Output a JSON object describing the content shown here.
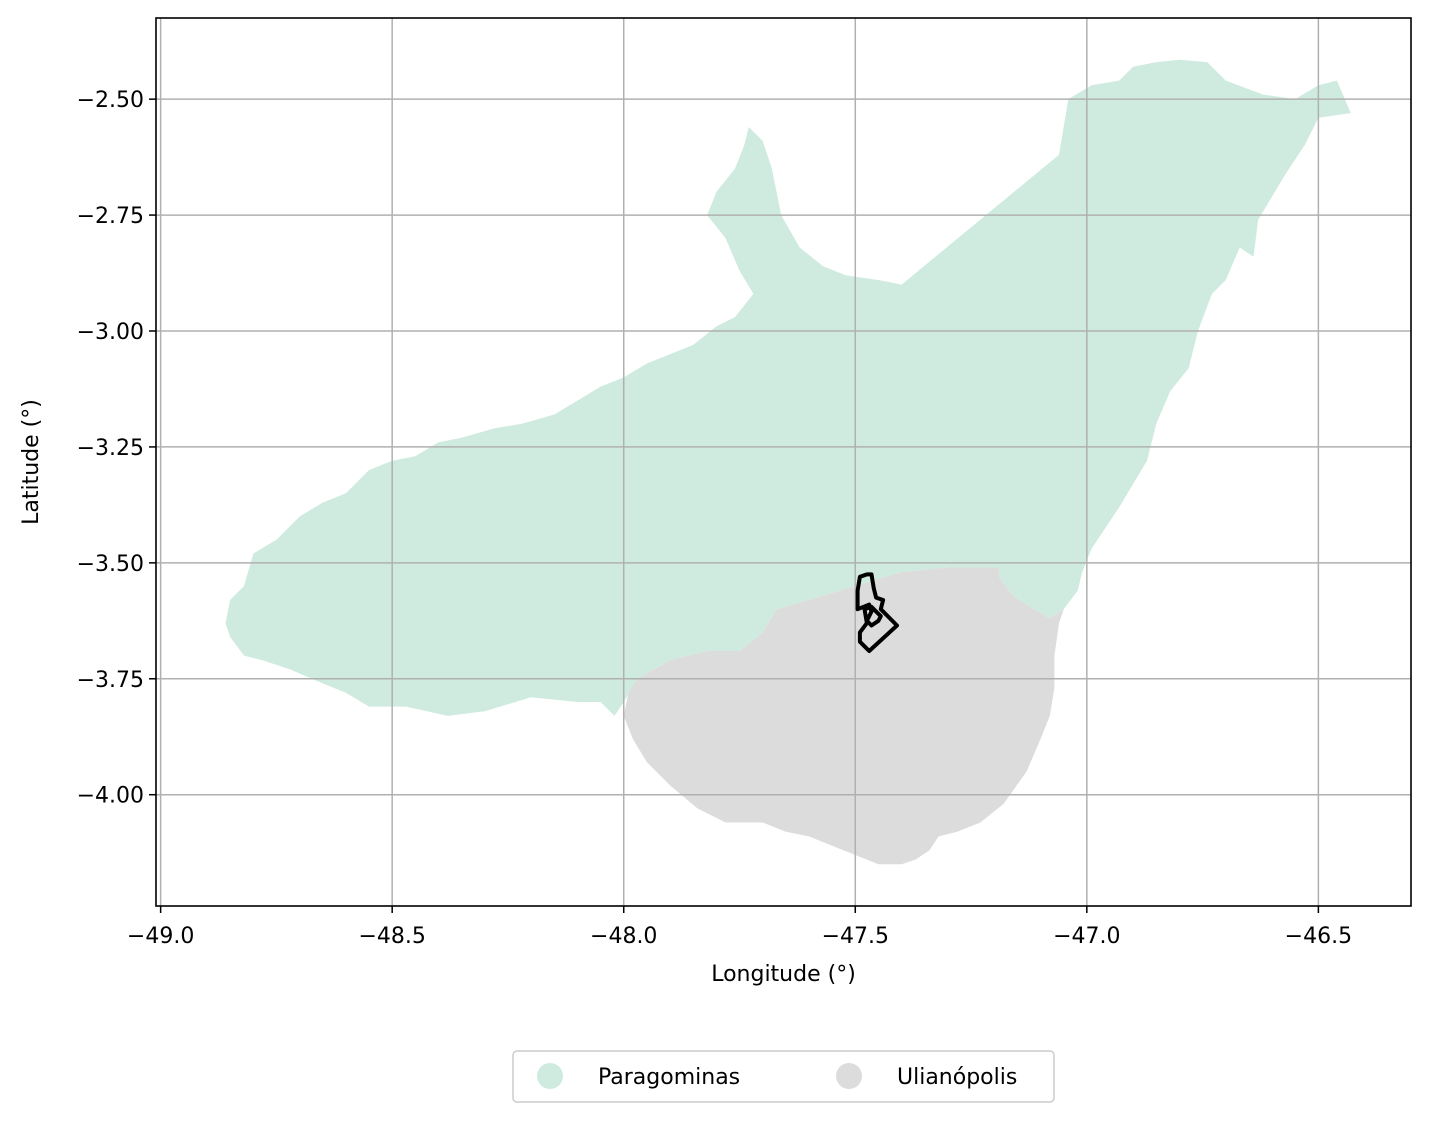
{
  "map": {
    "xlabel": "Longitude (°)",
    "ylabel": "Latitude (°)",
    "xlim": [
      -49.01,
      -46.3
    ],
    "ylim": [
      -4.24,
      -2.325
    ],
    "xticks": [
      -49.0,
      -48.5,
      -48.0,
      -47.5,
      -47.0,
      -46.5
    ],
    "yticks": [
      -2.5,
      -2.75,
      -3.0,
      -3.25,
      -3.5,
      -3.75,
      -4.0
    ],
    "xtick_labels": [
      "−49.0",
      "−48.5",
      "−48.0",
      "−47.5",
      "−47.0",
      "−46.5"
    ],
    "ytick_labels": [
      "−2.50",
      "−2.75",
      "−3.00",
      "−3.25",
      "−3.50",
      "−3.75",
      "−4.00"
    ],
    "grid": true,
    "legend_position": "bottom-center",
    "regions": [
      {
        "name": "Paragominas",
        "color": "#cfebdf",
        "outline": [
          [
            -48.86,
            -3.63
          ],
          [
            -48.85,
            -3.58
          ],
          [
            -48.82,
            -3.55
          ],
          [
            -48.8,
            -3.48
          ],
          [
            -48.75,
            -3.45
          ],
          [
            -48.7,
            -3.4
          ],
          [
            -48.65,
            -3.37
          ],
          [
            -48.6,
            -3.35
          ],
          [
            -48.55,
            -3.3
          ],
          [
            -48.5,
            -3.28
          ],
          [
            -48.45,
            -3.27
          ],
          [
            -48.4,
            -3.24
          ],
          [
            -48.35,
            -3.23
          ],
          [
            -48.28,
            -3.21
          ],
          [
            -48.22,
            -3.2
          ],
          [
            -48.15,
            -3.18
          ],
          [
            -48.1,
            -3.15
          ],
          [
            -48.05,
            -3.12
          ],
          [
            -48.0,
            -3.1
          ],
          [
            -47.95,
            -3.07
          ],
          [
            -47.9,
            -3.05
          ],
          [
            -47.85,
            -3.03
          ],
          [
            -47.8,
            -2.99
          ],
          [
            -47.76,
            -2.97
          ],
          [
            -47.72,
            -2.92
          ],
          [
            -47.75,
            -2.87
          ],
          [
            -47.78,
            -2.8
          ],
          [
            -47.82,
            -2.75
          ],
          [
            -47.8,
            -2.7
          ],
          [
            -47.76,
            -2.65
          ],
          [
            -47.74,
            -2.6
          ],
          [
            -47.73,
            -2.56
          ],
          [
            -47.7,
            -2.59
          ],
          [
            -47.68,
            -2.65
          ],
          [
            -47.66,
            -2.75
          ],
          [
            -47.62,
            -2.82
          ],
          [
            -47.57,
            -2.86
          ],
          [
            -47.52,
            -2.88
          ],
          [
            -47.45,
            -2.89
          ],
          [
            -47.4,
            -2.9
          ],
          [
            -47.06,
            -2.62
          ],
          [
            -47.04,
            -2.5
          ],
          [
            -46.99,
            -2.47
          ],
          [
            -46.93,
            -2.46
          ],
          [
            -46.9,
            -2.43
          ],
          [
            -46.85,
            -2.42
          ],
          [
            -46.8,
            -2.415
          ],
          [
            -46.74,
            -2.42
          ],
          [
            -46.7,
            -2.46
          ],
          [
            -46.62,
            -2.49
          ],
          [
            -46.55,
            -2.5
          ],
          [
            -46.5,
            -2.47
          ],
          [
            -46.46,
            -2.46
          ],
          [
            -46.43,
            -2.53
          ],
          [
            -46.5,
            -2.54
          ],
          [
            -46.53,
            -2.6
          ],
          [
            -46.57,
            -2.66
          ],
          [
            -46.6,
            -2.71
          ],
          [
            -46.63,
            -2.76
          ],
          [
            -46.64,
            -2.84
          ],
          [
            -46.67,
            -2.82
          ],
          [
            -46.7,
            -2.89
          ],
          [
            -46.73,
            -2.92
          ],
          [
            -46.76,
            -3.0
          ],
          [
            -46.78,
            -3.08
          ],
          [
            -46.82,
            -3.13
          ],
          [
            -46.85,
            -3.2
          ],
          [
            -46.87,
            -3.28
          ],
          [
            -46.9,
            -3.33
          ],
          [
            -46.93,
            -3.38
          ],
          [
            -46.97,
            -3.44
          ],
          [
            -46.99,
            -3.47
          ],
          [
            -47.01,
            -3.52
          ],
          [
            -47.02,
            -3.56
          ],
          [
            -47.05,
            -3.6
          ],
          [
            -47.08,
            -3.62
          ],
          [
            -47.13,
            -3.59
          ],
          [
            -47.16,
            -3.57
          ],
          [
            -47.19,
            -3.53
          ],
          [
            -47.3,
            -3.51
          ],
          [
            -47.4,
            -3.52
          ],
          [
            -47.5,
            -3.55
          ],
          [
            -47.6,
            -3.58
          ],
          [
            -47.67,
            -3.6
          ],
          [
            -47.7,
            -3.65
          ],
          [
            -47.75,
            -3.69
          ],
          [
            -47.82,
            -3.69
          ],
          [
            -47.9,
            -3.71
          ],
          [
            -47.97,
            -3.75
          ],
          [
            -48.0,
            -3.8
          ],
          [
            -48.02,
            -3.83
          ],
          [
            -48.05,
            -3.8
          ],
          [
            -48.1,
            -3.8
          ],
          [
            -48.2,
            -3.79
          ],
          [
            -48.3,
            -3.82
          ],
          [
            -48.38,
            -3.83
          ],
          [
            -48.47,
            -3.81
          ],
          [
            -48.55,
            -3.81
          ],
          [
            -48.6,
            -3.78
          ],
          [
            -48.65,
            -3.76
          ],
          [
            -48.72,
            -3.73
          ],
          [
            -48.78,
            -3.71
          ],
          [
            -48.82,
            -3.7
          ],
          [
            -48.85,
            -3.66
          ]
        ]
      },
      {
        "name": "Ulianópolis",
        "color": "#dcdcdc",
        "outline": [
          [
            -47.3,
            -3.51
          ],
          [
            -47.19,
            -3.51
          ],
          [
            -47.19,
            -3.53
          ],
          [
            -47.16,
            -3.57
          ],
          [
            -47.13,
            -3.59
          ],
          [
            -47.08,
            -3.62
          ],
          [
            -47.05,
            -3.6
          ],
          [
            -47.06,
            -3.63
          ],
          [
            -47.07,
            -3.7
          ],
          [
            -47.07,
            -3.77
          ],
          [
            -47.08,
            -3.83
          ],
          [
            -47.1,
            -3.88
          ],
          [
            -47.13,
            -3.95
          ],
          [
            -47.18,
            -4.02
          ],
          [
            -47.23,
            -4.06
          ],
          [
            -47.28,
            -4.08
          ],
          [
            -47.32,
            -4.09
          ],
          [
            -47.34,
            -4.12
          ],
          [
            -47.37,
            -4.14
          ],
          [
            -47.4,
            -4.15
          ],
          [
            -47.45,
            -4.15
          ],
          [
            -47.5,
            -4.13
          ],
          [
            -47.55,
            -4.11
          ],
          [
            -47.6,
            -4.09
          ],
          [
            -47.65,
            -4.08
          ],
          [
            -47.7,
            -4.06
          ],
          [
            -47.78,
            -4.06
          ],
          [
            -47.84,
            -4.03
          ],
          [
            -47.9,
            -3.98
          ],
          [
            -47.95,
            -3.93
          ],
          [
            -47.98,
            -3.88
          ],
          [
            -48.0,
            -3.83
          ],
          [
            -47.99,
            -3.78
          ],
          [
            -47.97,
            -3.75
          ],
          [
            -47.9,
            -3.71
          ],
          [
            -47.82,
            -3.69
          ],
          [
            -47.75,
            -3.69
          ],
          [
            -47.7,
            -3.65
          ],
          [
            -47.67,
            -3.6
          ],
          [
            -47.6,
            -3.58
          ],
          [
            -47.5,
            -3.55
          ],
          [
            -47.4,
            -3.52
          ]
        ]
      }
    ],
    "highlight": {
      "color": "#000000",
      "outline": [
        [
          -47.475,
          -3.525
        ],
        [
          -47.49,
          -3.53
        ],
        [
          -47.495,
          -3.56
        ],
        [
          -47.495,
          -3.6
        ],
        [
          -47.47,
          -3.59
        ],
        [
          -47.465,
          -3.605
        ],
        [
          -47.475,
          -3.625
        ],
        [
          -47.465,
          -3.635
        ],
        [
          -47.45,
          -3.625
        ],
        [
          -47.445,
          -3.615
        ],
        [
          -47.465,
          -3.595
        ],
        [
          -47.48,
          -3.6
        ],
        [
          -47.475,
          -3.63
        ],
        [
          -47.49,
          -3.65
        ],
        [
          -47.49,
          -3.67
        ],
        [
          -47.48,
          -3.68
        ],
        [
          -47.47,
          -3.69
        ],
        [
          -47.41,
          -3.635
        ],
        [
          -47.445,
          -3.6
        ],
        [
          -47.44,
          -3.58
        ],
        [
          -47.455,
          -3.575
        ],
        [
          -47.46,
          -3.555
        ],
        [
          -47.465,
          -3.525
        ]
      ]
    }
  },
  "legend": {
    "items": [
      {
        "label": "Paragominas",
        "color": "#cfebdf"
      },
      {
        "label": "Ulianópolis",
        "color": "#dcdcdc"
      }
    ]
  }
}
